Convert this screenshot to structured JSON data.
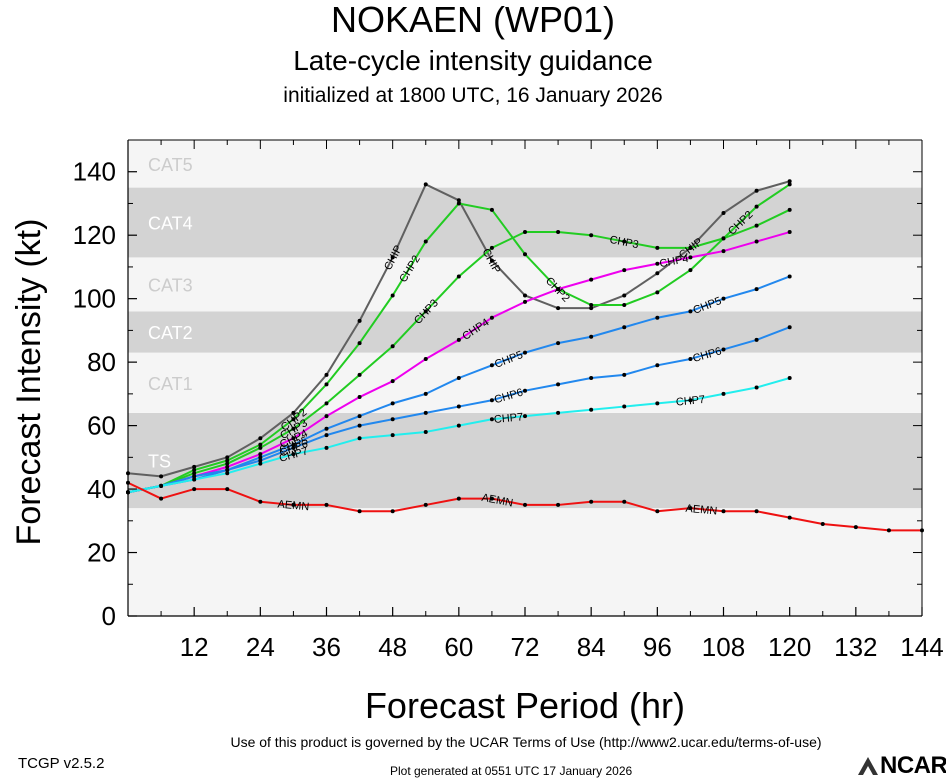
{
  "header": {
    "title": "NOKAEN (WP01)",
    "subtitle": "Late-cycle intensity guidance",
    "initialized": "initialized at 1800 UTC, 16 January 2026"
  },
  "footer": {
    "terms": "Use of this product is governed by the UCAR Terms of Use (http://www2.ucar.edu/terms-of-use)",
    "version": "TCGP v2.5.2",
    "generated": "Plot generated at 0551 UTC   17 January 2026",
    "logo_text": "NCAR"
  },
  "chart_data": {
    "type": "line",
    "xlabel": "Forecast Period (hr)",
    "ylabel": "Forecast Intensity (kt)",
    "xlim": [
      0,
      144
    ],
    "ylim": [
      0,
      150
    ],
    "xticks": [
      12,
      24,
      36,
      48,
      60,
      72,
      84,
      96,
      108,
      120,
      132,
      144
    ],
    "yticks": [
      0,
      20,
      40,
      60,
      80,
      100,
      120,
      140
    ],
    "bands": [
      {
        "label": "TS",
        "from": 34,
        "to": 64,
        "color": "#d3d3d3"
      },
      {
        "label": "CAT1",
        "from": 64,
        "to": 83,
        "color": "#f5f5f5"
      },
      {
        "label": "CAT2",
        "from": 83,
        "to": 96,
        "color": "#d3d3d3"
      },
      {
        "label": "CAT3",
        "from": 96,
        "to": 113,
        "color": "#f5f5f5"
      },
      {
        "label": "CAT4",
        "from": 113,
        "to": 135,
        "color": "#d3d3d3"
      },
      {
        "label": "CAT5",
        "from": 135,
        "to": 150,
        "color": "#f5f5f5"
      }
    ],
    "below_band_color": "#f5f5f5",
    "series": [
      {
        "name": "CHIP",
        "color": "#606060",
        "x": [
          0,
          6,
          12,
          18,
          24,
          30,
          36,
          42,
          48,
          54,
          60,
          66,
          72,
          78,
          84,
          90,
          96,
          102,
          108,
          114,
          120
        ],
        "y": [
          45,
          44,
          47,
          50,
          56,
          64,
          76,
          93,
          113,
          136,
          131,
          112,
          101,
          97,
          97,
          101,
          108,
          116,
          127,
          134,
          137
        ],
        "labels_at": [
          48,
          66,
          102
        ]
      },
      {
        "name": "CHP2",
        "color": "#22cc22",
        "x": [
          0,
          6,
          12,
          18,
          24,
          30,
          36,
          42,
          48,
          54,
          60,
          66,
          72,
          78,
          84,
          90,
          96,
          102,
          108,
          114,
          120
        ],
        "y": [
          39,
          41,
          46,
          49,
          54,
          62,
          73,
          86,
          101,
          118,
          130,
          128,
          114,
          103,
          98,
          98,
          102,
          109,
          119,
          129,
          136
        ],
        "labels_at": [
          30,
          51,
          78,
          111
        ]
      },
      {
        "name": "CHP3",
        "color": "#22cc22",
        "x": [
          0,
          6,
          12,
          18,
          24,
          30,
          36,
          42,
          48,
          54,
          60,
          66,
          72,
          78,
          84,
          90,
          96,
          102,
          108,
          114,
          120
        ],
        "y": [
          39,
          41,
          45,
          48,
          53,
          59,
          67,
          76,
          85,
          96,
          107,
          116,
          121,
          121,
          120,
          118,
          116,
          116,
          119,
          123,
          128
        ],
        "labels_at": [
          30,
          54,
          90
        ]
      },
      {
        "name": "CHP4",
        "color": "#ee00ee",
        "x": [
          0,
          6,
          12,
          18,
          24,
          30,
          36,
          42,
          48,
          54,
          60,
          66,
          72,
          78,
          84,
          90,
          96,
          102,
          108,
          114,
          120
        ],
        "y": [
          39,
          41,
          44,
          47,
          51,
          56,
          63,
          69,
          74,
          81,
          87,
          94,
          99,
          103,
          106,
          109,
          111,
          113,
          115,
          118,
          121
        ],
        "labels_at": [
          30,
          63,
          99
        ]
      },
      {
        "name": "CHP5",
        "color": "#2288ee",
        "x": [
          0,
          6,
          12,
          18,
          24,
          30,
          36,
          42,
          48,
          54,
          60,
          66,
          72,
          78,
          84,
          90,
          96,
          102,
          108,
          114,
          120
        ],
        "y": [
          39,
          41,
          44,
          46,
          50,
          54,
          59,
          63,
          67,
          70,
          75,
          79,
          83,
          86,
          88,
          91,
          94,
          96,
          100,
          103,
          107
        ],
        "labels_at": [
          30,
          69,
          105
        ]
      },
      {
        "name": "CHP6",
        "color": "#2288ee",
        "x": [
          0,
          6,
          12,
          18,
          24,
          30,
          36,
          42,
          48,
          54,
          60,
          66,
          72,
          78,
          84,
          90,
          96,
          102,
          108,
          114,
          120
        ],
        "y": [
          39,
          41,
          43,
          46,
          49,
          53,
          57,
          60,
          62,
          64,
          66,
          68,
          71,
          73,
          75,
          76,
          79,
          81,
          84,
          87,
          91
        ],
        "labels_at": [
          30,
          69,
          105
        ]
      },
      {
        "name": "CHP7",
        "color": "#22eeee",
        "x": [
          0,
          6,
          12,
          18,
          24,
          30,
          36,
          42,
          48,
          54,
          60,
          66,
          72,
          78,
          84,
          90,
          96,
          102,
          108,
          114,
          120
        ],
        "y": [
          39,
          41,
          43,
          45,
          48,
          51,
          53,
          56,
          57,
          58,
          60,
          62,
          63,
          64,
          65,
          66,
          67,
          68,
          70,
          72,
          75
        ],
        "labels_at": [
          30,
          69,
          102
        ]
      },
      {
        "name": "AEMN",
        "color": "#ee1111",
        "x": [
          0,
          6,
          12,
          18,
          24,
          30,
          36,
          42,
          48,
          54,
          60,
          66,
          72,
          78,
          84,
          90,
          96,
          102,
          108,
          114,
          120,
          126,
          132,
          138,
          144
        ],
        "y": [
          42,
          37,
          40,
          40,
          36,
          35,
          35,
          33,
          33,
          35,
          37,
          37,
          35,
          35,
          36,
          36,
          33,
          34,
          33,
          33,
          31,
          29,
          28,
          27,
          27
        ],
        "labels_at": [
          30,
          67,
          104
        ]
      }
    ]
  }
}
